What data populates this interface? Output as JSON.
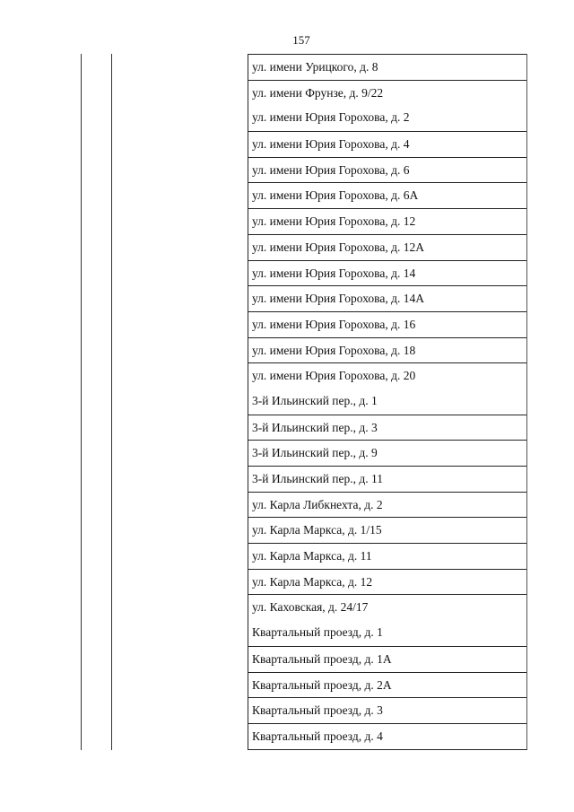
{
  "page_number": "157",
  "addresses": [
    "ул. имени Урицкого, д. 8",
    "ул. имени Фрунзе, д. 9/22",
    "ул. имени Юрия Горохова, д. 2",
    "ул. имени Юрия Горохова, д. 4",
    "ул. имени Юрия Горохова, д. 6",
    "ул. имени Юрия Горохова, д. 6А",
    "ул. имени Юрия Горохова, д. 12",
    "ул. имени Юрия Горохова, д. 12А",
    "ул. имени Юрия Горохова, д. 14",
    "ул. имени Юрия Горохова, д. 14А",
    "ул. имени Юрия Горохова, д. 16",
    "ул. имени Юрия Горохова, д. 18",
    "ул. имени Юрия Горохова, д. 20",
    "3-й Ильинский пер., д. 1",
    "3-й Ильинский пер., д. 3",
    "3-й Ильинский пер., д. 9",
    "3-й Ильинский пер., д. 11",
    "ул. Карла Либкнехта, д. 2",
    "ул. Карла Маркса, д. 1/15",
    "ул. Карла Маркса, д. 11",
    "ул. Карла Маркса, д. 12",
    "ул. Каховская, д. 24/17",
    "Квартальный проезд, д. 1",
    "Квартальный проезд, д. 1А",
    "Квартальный проезд, д. 2А",
    "Квартальный проезд, д. 3",
    "Квартальный проезд, д. 4"
  ]
}
